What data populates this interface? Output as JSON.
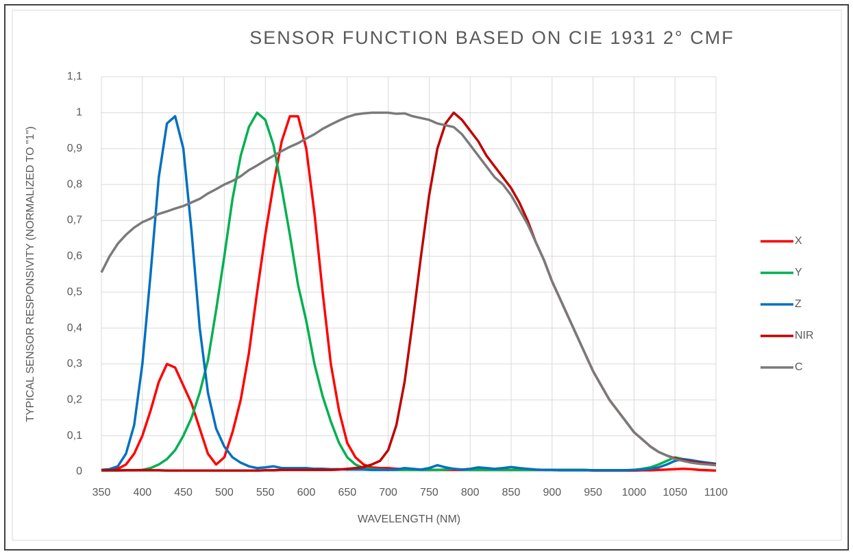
{
  "chart_data": {
    "type": "line",
    "title": "SENSOR FUNCTION BASED ON CIE 1931 2° CMF",
    "x_label": "WAVELENGTH (NM)",
    "y_label": "TYPICAL SENSOR RESPONSIVITY (NORMALIZED TO \"1\")",
    "x": [
      350,
      360,
      370,
      380,
      390,
      400,
      410,
      420,
      430,
      440,
      450,
      460,
      470,
      480,
      490,
      500,
      510,
      520,
      530,
      540,
      550,
      560,
      570,
      580,
      590,
      600,
      610,
      620,
      630,
      640,
      650,
      660,
      670,
      680,
      690,
      700,
      710,
      720,
      730,
      740,
      750,
      760,
      770,
      780,
      790,
      800,
      810,
      820,
      830,
      840,
      850,
      860,
      870,
      880,
      890,
      900,
      910,
      920,
      930,
      940,
      950,
      960,
      970,
      980,
      990,
      1000,
      1010,
      1020,
      1030,
      1040,
      1050,
      1060,
      1070,
      1080,
      1090,
      1100
    ],
    "series": [
      {
        "name": "X",
        "color": "#ff0000",
        "values": [
          0.005,
          0.005,
          0.008,
          0.02,
          0.05,
          0.1,
          0.17,
          0.25,
          0.3,
          0.29,
          0.24,
          0.19,
          0.12,
          0.05,
          0.02,
          0.04,
          0.11,
          0.2,
          0.33,
          0.5,
          0.66,
          0.8,
          0.92,
          0.99,
          0.99,
          0.9,
          0.72,
          0.5,
          0.3,
          0.17,
          0.08,
          0.04,
          0.02,
          0.012,
          0.01,
          0.01,
          0.008,
          0.007,
          0.006,
          0.005,
          0.005,
          0.005,
          0.005,
          0.005,
          0.005,
          0.005,
          0.005,
          0.005,
          0.005,
          0.005,
          0.005,
          0.005,
          0.005,
          0.005,
          0.005,
          0.005,
          0.005,
          0.005,
          0.005,
          0.005,
          0.003,
          0.003,
          0.003,
          0.003,
          0.003,
          0.003,
          0.004,
          0.004,
          0.005,
          0.006,
          0.007,
          0.008,
          0.007,
          0.005,
          0.004,
          0.003
        ]
      },
      {
        "name": "Y",
        "color": "#00b050",
        "values": [
          0.003,
          0.003,
          0.003,
          0.004,
          0.004,
          0.005,
          0.01,
          0.02,
          0.035,
          0.06,
          0.1,
          0.15,
          0.22,
          0.31,
          0.45,
          0.6,
          0.76,
          0.88,
          0.96,
          1.0,
          0.98,
          0.91,
          0.79,
          0.66,
          0.52,
          0.42,
          0.3,
          0.21,
          0.14,
          0.08,
          0.04,
          0.02,
          0.01,
          0.008,
          0.006,
          0.005,
          0.005,
          0.005,
          0.005,
          0.005,
          0.005,
          0.005,
          0.006,
          0.008,
          0.006,
          0.005,
          0.005,
          0.005,
          0.005,
          0.005,
          0.005,
          0.005,
          0.005,
          0.005,
          0.005,
          0.005,
          0.005,
          0.005,
          0.005,
          0.005,
          0.004,
          0.004,
          0.004,
          0.004,
          0.004,
          0.005,
          0.008,
          0.012,
          0.02,
          0.03,
          0.04,
          0.035,
          0.03,
          0.028,
          0.024,
          0.02
        ]
      },
      {
        "name": "Z",
        "color": "#0070c0",
        "values": [
          0.005,
          0.007,
          0.015,
          0.05,
          0.13,
          0.3,
          0.55,
          0.82,
          0.97,
          0.99,
          0.9,
          0.67,
          0.4,
          0.22,
          0.12,
          0.07,
          0.04,
          0.025,
          0.015,
          0.01,
          0.012,
          0.015,
          0.01,
          0.01,
          0.01,
          0.01,
          0.008,
          0.008,
          0.007,
          0.007,
          0.006,
          0.006,
          0.006,
          0.005,
          0.005,
          0.005,
          0.006,
          0.01,
          0.008,
          0.006,
          0.01,
          0.018,
          0.012,
          0.008,
          0.006,
          0.008,
          0.012,
          0.01,
          0.008,
          0.01,
          0.013,
          0.01,
          0.008,
          0.006,
          0.005,
          0.005,
          0.004,
          0.004,
          0.004,
          0.004,
          0.004,
          0.004,
          0.004,
          0.004,
          0.004,
          0.005,
          0.006,
          0.008,
          0.012,
          0.02,
          0.03,
          0.035,
          0.032,
          0.028,
          0.025,
          0.022
        ]
      },
      {
        "name": "NIR",
        "color": "#c00000",
        "values": [
          0.004,
          0.004,
          0.004,
          0.004,
          0.004,
          0.004,
          0.004,
          0.004,
          0.003,
          0.003,
          0.003,
          0.003,
          0.003,
          0.003,
          0.003,
          0.003,
          0.003,
          0.003,
          0.003,
          0.003,
          0.004,
          0.004,
          0.005,
          0.005,
          0.005,
          0.005,
          0.005,
          0.005,
          0.005,
          0.006,
          0.008,
          0.01,
          0.013,
          0.02,
          0.03,
          0.06,
          0.13,
          0.25,
          0.42,
          0.6,
          0.77,
          0.9,
          0.97,
          1.0,
          0.98,
          0.95,
          0.92,
          0.88,
          0.85,
          0.82,
          0.79,
          0.75,
          0.7,
          0.64,
          0.59,
          0.53,
          0.48,
          0.43,
          0.38,
          0.33,
          0.28,
          0.24,
          0.2,
          0.17,
          0.14,
          0.11,
          0.09,
          0.07,
          0.055,
          0.045,
          0.037,
          0.032,
          0.028,
          0.025,
          0.022,
          0.02
        ]
      },
      {
        "name": "C",
        "color": "#7a7a7a",
        "values": [
          0.555,
          0.6,
          0.635,
          0.66,
          0.68,
          0.695,
          0.705,
          0.718,
          0.725,
          0.733,
          0.74,
          0.75,
          0.76,
          0.775,
          0.787,
          0.8,
          0.81,
          0.823,
          0.84,
          0.853,
          0.867,
          0.88,
          0.893,
          0.905,
          0.915,
          0.928,
          0.94,
          0.955,
          0.967,
          0.978,
          0.988,
          0.995,
          0.998,
          1.0,
          1.0,
          1.0,
          0.997,
          0.998,
          0.99,
          0.985,
          0.98,
          0.97,
          0.965,
          0.96,
          0.94,
          0.91,
          0.88,
          0.85,
          0.82,
          0.8,
          0.77,
          0.73,
          0.69,
          0.64,
          0.59,
          0.53,
          0.48,
          0.43,
          0.38,
          0.33,
          0.28,
          0.24,
          0.2,
          0.17,
          0.14,
          0.11,
          0.09,
          0.07,
          0.055,
          0.045,
          0.035,
          0.03,
          0.025,
          0.022,
          0.02,
          0.018
        ]
      }
    ],
    "xlim": [
      350,
      1100
    ],
    "xticks": [
      350,
      400,
      450,
      500,
      550,
      600,
      650,
      700,
      750,
      800,
      850,
      900,
      950,
      1000,
      1050,
      1100
    ],
    "ylim": [
      0,
      1.1
    ],
    "yticks": [
      0,
      {
        "value": 0.1,
        "label": "0,1"
      },
      {
        "value": 0.2,
        "label": "0,2"
      },
      {
        "value": 0.3,
        "label": "0,3"
      },
      {
        "value": 0.4,
        "label": "0,4"
      },
      {
        "value": 0.5,
        "label": "0,5"
      },
      {
        "value": 0.6,
        "label": "0,6"
      },
      {
        "value": 0.7,
        "label": "0,7"
      },
      {
        "value": 0.8,
        "label": "0,8"
      },
      {
        "value": 0.9,
        "label": "0,9"
      },
      1,
      {
        "value": 1.1,
        "label": "1,1"
      }
    ],
    "grid": true,
    "legend": "right"
  }
}
